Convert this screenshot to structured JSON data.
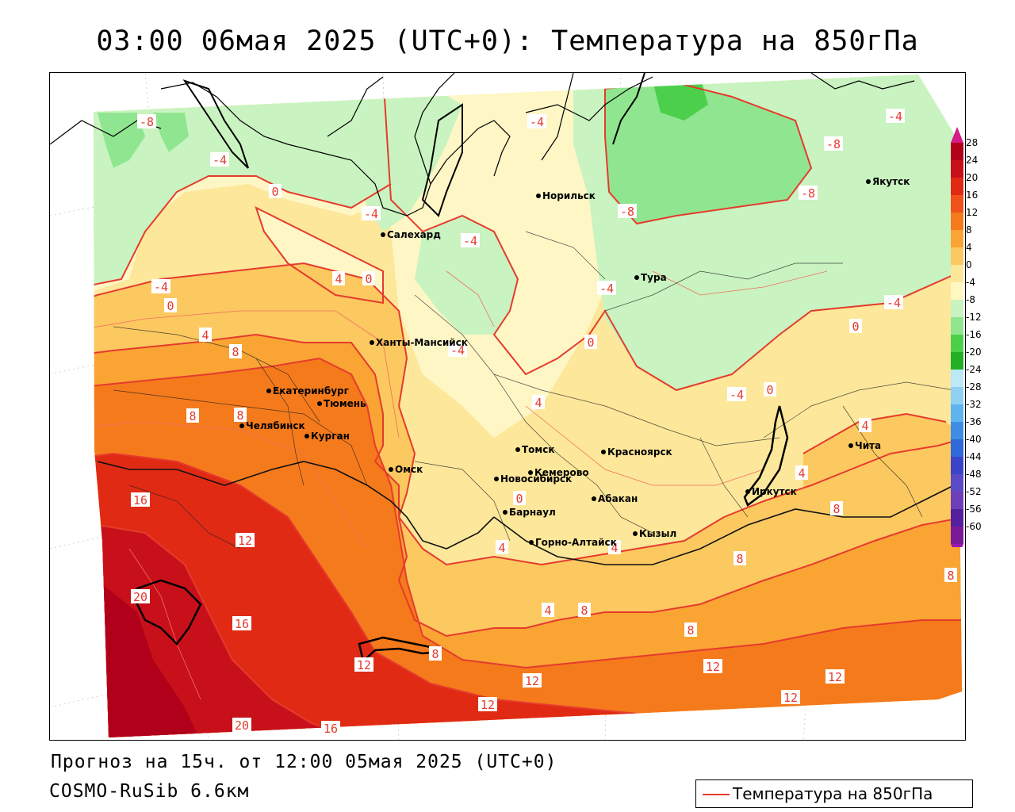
{
  "title": "03:00 06мая 2025 (UTC+0): Температура на 850гПа",
  "forecast_line": "Прогноз на 15ч. от 12:00 05мая 2025 (UTC+0)",
  "model_line": "COSMO-RuSib 6.6км",
  "legend": {
    "label": "Температура на 850гПа",
    "line_color": "#e53b2e"
  },
  "colorbar": {
    "ticks": [
      "28",
      "24",
      "20",
      "16",
      "12",
      "8",
      "4",
      "0",
      "-4",
      "-8",
      "-12",
      "-16",
      "-20",
      "-24",
      "-28",
      "-32",
      "-36",
      "-40",
      "-44",
      "-48",
      "-52",
      "-56",
      "-60"
    ],
    "colors": [
      "#b0001a",
      "#c8101a",
      "#e02a14",
      "#f0501a",
      "#f57a1c",
      "#f9a433",
      "#fcc860",
      "#fde79a",
      "#fff7c0",
      "#c9f3c0",
      "#90e690",
      "#4cd04c",
      "#22b026",
      "#bde8f7",
      "#8fd0f3",
      "#5eb4ee",
      "#3e8de4",
      "#2f68d8",
      "#3a44c8",
      "#5a4ac8",
      "#6f3fb8",
      "#5520a0",
      "#7a1a9a"
    ],
    "top_arrow_color": "#d81b8a",
    "bottom_arrow_color": "#9a1ab0"
  },
  "cities": [
    {
      "name": "Норильск"
    },
    {
      "name": "Якутск"
    },
    {
      "name": "Салехард"
    },
    {
      "name": "Тура"
    },
    {
      "name": "Ханты-Мансийск"
    },
    {
      "name": "Екатеринбург"
    },
    {
      "name": "Тюмень"
    },
    {
      "name": "Челябинск"
    },
    {
      "name": "Курган"
    },
    {
      "name": "Омск"
    },
    {
      "name": "Томск"
    },
    {
      "name": "Красноярск"
    },
    {
      "name": "Новосибирск"
    },
    {
      "name": "Кемерово"
    },
    {
      "name": "Абакан"
    },
    {
      "name": "Барнаул"
    },
    {
      "name": "Горно-Алтайск"
    },
    {
      "name": "Кызыл"
    },
    {
      "name": "Иркутск"
    },
    {
      "name": "Чита"
    }
  ],
  "isotherm_labels": [
    "-8",
    "-4",
    "-4",
    "0",
    "-4",
    "-4",
    "-4",
    "-8",
    "-8",
    "-8",
    "-4",
    "-4",
    "0",
    "4",
    "0",
    "-4",
    "4",
    "8",
    "-4",
    "0",
    "0",
    "-4",
    "0",
    "4",
    "8",
    "8",
    "4",
    "4",
    "8",
    "16",
    "12",
    "0",
    "4",
    "4",
    "8",
    "4",
    "8",
    "8",
    "8",
    "20",
    "16",
    "12",
    "8",
    "12",
    "12",
    "12",
    "12",
    "12",
    "20",
    "16"
  ]
}
